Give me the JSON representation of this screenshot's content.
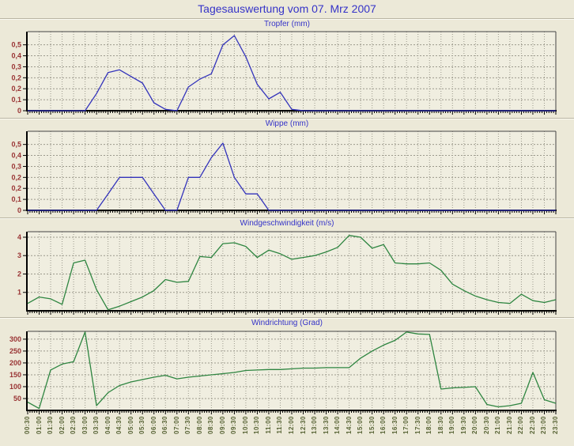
{
  "page": {
    "title": "Tagesauswertung vom 07. Mrz 2007"
  },
  "colors": {
    "background": "#ece9d8",
    "plot_background": "#f0eee0",
    "grid": "#9b998c",
    "axis": "#000000",
    "border": "#444444",
    "title_blue": "#3533c8",
    "y_label_maroon": "#993333",
    "x_label_olive": "#566233",
    "rain_line_blue": "#3333bb",
    "wind_line_green": "#2e8540"
  },
  "x_axis": {
    "shared": true,
    "labels": [
      "00:30",
      "01:00",
      "01:30",
      "02:00",
      "02:30",
      "03:00",
      "03:30",
      "04:00",
      "04:30",
      "05:00",
      "05:30",
      "06:00",
      "06:30",
      "07:00",
      "07:30",
      "08:00",
      "08:30",
      "09:00",
      "09:30",
      "10:00",
      "10:30",
      "11:00",
      "11:30",
      "12:00",
      "12:30",
      "13:00",
      "13:30",
      "14:00",
      "14:30",
      "15:00",
      "15:30",
      "16:00",
      "16:30",
      "17:00",
      "17:30",
      "18:00",
      "18:30",
      "19:00",
      "19:30",
      "20:00",
      "20:30",
      "21:00",
      "21:30",
      "22:00",
      "22:30",
      "23:00",
      "23:30"
    ]
  },
  "chart_data": [
    {
      "type": "line",
      "title": "Tropfer (mm)",
      "ylabel": "mm",
      "line_color": "#3333bb",
      "ylim": [
        0,
        0.6
      ],
      "y_ticks": [
        {
          "label": "0",
          "value": 0
        },
        {
          "label": "0,1",
          "value": 0.0833
        },
        {
          "label": "0,2",
          "value": 0.1667
        },
        {
          "label": "0,2",
          "value": 0.25
        },
        {
          "label": "0,3",
          "value": 0.3333
        },
        {
          "label": "0,4",
          "value": 0.4167
        },
        {
          "label": "0,5",
          "value": 0.5
        }
      ],
      "values": [
        0,
        0,
        0,
        0,
        0,
        0,
        0.13,
        0.29,
        0.31,
        0.26,
        0.21,
        0.06,
        0.01,
        0,
        0.18,
        0.24,
        0.28,
        0.5,
        0.57,
        0.41,
        0.2,
        0.09,
        0.14,
        0.01,
        0,
        0,
        0,
        0,
        0,
        0,
        0,
        0,
        0,
        0,
        0,
        0,
        0,
        0,
        0,
        0,
        0,
        0,
        0,
        0,
        0,
        0,
        0
      ]
    },
    {
      "type": "line",
      "title": "Wippe (mm)",
      "ylabel": "mm",
      "line_color": "#3333bb",
      "ylim": [
        0,
        0.6
      ],
      "y_ticks": [
        {
          "label": "0",
          "value": 0
        },
        {
          "label": "0,1",
          "value": 0.0833
        },
        {
          "label": "0,2",
          "value": 0.1667
        },
        {
          "label": "0,2",
          "value": 0.25
        },
        {
          "label": "0,3",
          "value": 0.3333
        },
        {
          "label": "0,4",
          "value": 0.4167
        },
        {
          "label": "0,5",
          "value": 0.5
        }
      ],
      "values": [
        0,
        0,
        0,
        0,
        0,
        0,
        0,
        0.125,
        0.25,
        0.25,
        0.25,
        0.125,
        0,
        0,
        0.25,
        0.25,
        0.4,
        0.51,
        0.25,
        0.125,
        0.125,
        0,
        0,
        0,
        0,
        0,
        0,
        0,
        0,
        0,
        0,
        0,
        0,
        0,
        0,
        0,
        0,
        0,
        0,
        0,
        0,
        0,
        0,
        0,
        0,
        0,
        0
      ]
    },
    {
      "type": "line",
      "title": "Windgeschwindigkeit (m/s)",
      "ylabel": "m/s",
      "line_color": "#2e8540",
      "ylim": [
        0,
        4.3
      ],
      "y_ticks": [
        {
          "label": "1",
          "value": 1
        },
        {
          "label": "2",
          "value": 2
        },
        {
          "label": "3",
          "value": 3
        },
        {
          "label": "4",
          "value": 4
        }
      ],
      "values": [
        0.4,
        0.75,
        0.65,
        0.35,
        2.6,
        2.75,
        1.15,
        0.05,
        0.25,
        0.5,
        0.75,
        1.1,
        1.7,
        1.55,
        1.6,
        2.95,
        2.9,
        3.65,
        3.7,
        3.5,
        2.9,
        3.3,
        3.1,
        2.8,
        2.9,
        3.0,
        3.2,
        3.45,
        4.1,
        4.0,
        3.4,
        3.6,
        2.6,
        2.55,
        2.55,
        2.6,
        2.2,
        1.45,
        1.1,
        0.8,
        0.6,
        0.45,
        0.4,
        0.9,
        0.55,
        0.45,
        0.6
      ]
    },
    {
      "type": "line",
      "title": "Windrichtung (Grad)",
      "ylabel": "Grad",
      "line_color": "#2e8540",
      "ylim": [
        0,
        333
      ],
      "y_ticks": [
        {
          "label": "50",
          "value": 50
        },
        {
          "label": "100",
          "value": 100
        },
        {
          "label": "150",
          "value": 150
        },
        {
          "label": "200",
          "value": 200
        },
        {
          "label": "250",
          "value": 250
        },
        {
          "label": "300",
          "value": 300
        }
      ],
      "values": [
        35,
        8,
        170,
        195,
        205,
        330,
        20,
        75,
        105,
        120,
        130,
        140,
        148,
        133,
        140,
        145,
        150,
        155,
        160,
        168,
        170,
        172,
        172,
        175,
        178,
        178,
        180,
        180,
        180,
        220,
        250,
        275,
        295,
        330,
        322,
        320,
        90,
        95,
        97,
        100,
        25,
        15,
        20,
        30,
        160,
        45,
        30
      ]
    }
  ]
}
